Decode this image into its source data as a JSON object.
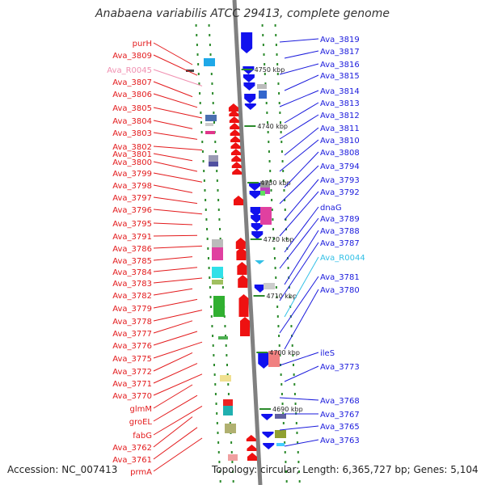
{
  "title": "Anabaena variabilis ATCC 29413, complete genome",
  "accession": "Accession: NC_007413",
  "topology": "Topology: circular; Length: 6,365,727 bp; Genes: 5,104",
  "colors": {
    "left_label": "#e31a1c",
    "right_label": "#1a1adc",
    "rna_left": "#f08fb0",
    "rna_right": "#33c0e6",
    "backbone": "#808080",
    "tick": "#2b8a2b"
  },
  "ticks": [
    "4750 kbp",
    "4740 kbp",
    "4730 kbp",
    "4720 kbp",
    "4710 kbp",
    "4700 kbp",
    "4690 kbp"
  ],
  "left_labels": [
    "purH",
    "Ava_3809",
    "Ava_R0045",
    "Ava_3807",
    "Ava_3806",
    "Ava_3805",
    "Ava_3804",
    "Ava_3803",
    "Ava_3802",
    "Ava_3801",
    "Ava_3800",
    "Ava_3799",
    "Ava_3798",
    "Ava_3797",
    "Ava_3796",
    "Ava_3795",
    "Ava_3791",
    "Ava_3786",
    "Ava_3785",
    "Ava_3784",
    "Ava_3783",
    "Ava_3782",
    "Ava_3779",
    "Ava_3778",
    "Ava_3777",
    "Ava_3776",
    "Ava_3775",
    "Ava_3772",
    "Ava_3771",
    "Ava_3770",
    "glmM",
    "groEL",
    "fabG",
    "Ava_3762",
    "Ava_3761",
    "prmA"
  ],
  "right_labels": [
    "Ava_3819",
    "Ava_3817",
    "Ava_3816",
    "Ava_3815",
    "Ava_3814",
    "Ava_3813",
    "Ava_3812",
    "Ava_3811",
    "Ava_3810",
    "Ava_3808",
    "Ava_3794",
    "Ava_3793",
    "Ava_3792",
    "dnaG",
    "Ava_3789",
    "Ava_3788",
    "Ava_3787",
    "Ava_R0044",
    "Ava_3781",
    "Ava_3780",
    "ileS",
    "Ava_3773",
    "Ava_3768",
    "Ava_3767",
    "Ava_3765",
    "Ava_3763"
  ]
}
